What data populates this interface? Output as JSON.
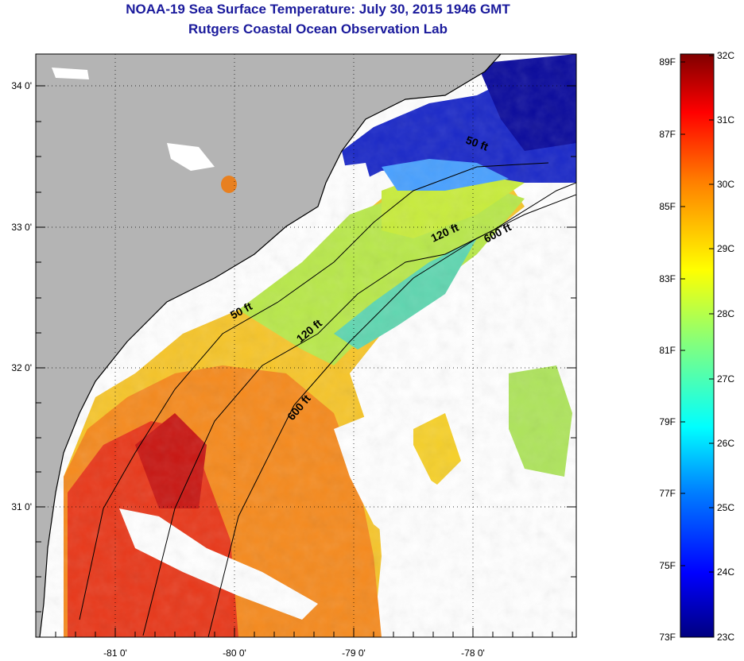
{
  "title": "NOAA-19 Sea Surface Temperature:  July 30, 2015 1946 GMT",
  "subtitle": "Rutgers Coastal Ocean Observation Lab",
  "axes": {
    "lon_labels": [
      "-81 0'",
      "-80 0'",
      "-79 0'",
      "-78 0'"
    ],
    "lat_labels": [
      "34 0'",
      "33 0'",
      "32 0'",
      "31 0'"
    ]
  },
  "isobaths": [
    {
      "label": "50 ft",
      "name": "50ft"
    },
    {
      "label": "120 ft",
      "name": "120ft"
    },
    {
      "label": "600 ft",
      "name": "600ft"
    }
  ],
  "isobath_labels": [
    {
      "label": "50 ft",
      "id": "50a"
    },
    {
      "label": "50 ft",
      "id": "50b"
    },
    {
      "label": "120 ft",
      "id": "120a"
    },
    {
      "label": "120 ft",
      "id": "120b"
    },
    {
      "label": "600 ft",
      "id": "600a"
    },
    {
      "label": "600 ft",
      "id": "600b"
    }
  ],
  "colorbar": {
    "fahrenheit": [
      "89F",
      "87F",
      "85F",
      "83F",
      "81F",
      "79F",
      "77F",
      "75F",
      "73F"
    ],
    "celsius": [
      "32C",
      "31C",
      "30C",
      "29C",
      "28C",
      "27C",
      "26C",
      "25C",
      "24C",
      "23C"
    ],
    "colors": [
      "#000080",
      "#0000ff",
      "#0080ff",
      "#00ffff",
      "#80ff80",
      "#ffff00",
      "#ff8000",
      "#ff0000",
      "#800000"
    ]
  },
  "colors": {
    "land": "#b4b4b4",
    "cloud": "#ffffff",
    "title": "#1a1a9c"
  }
}
